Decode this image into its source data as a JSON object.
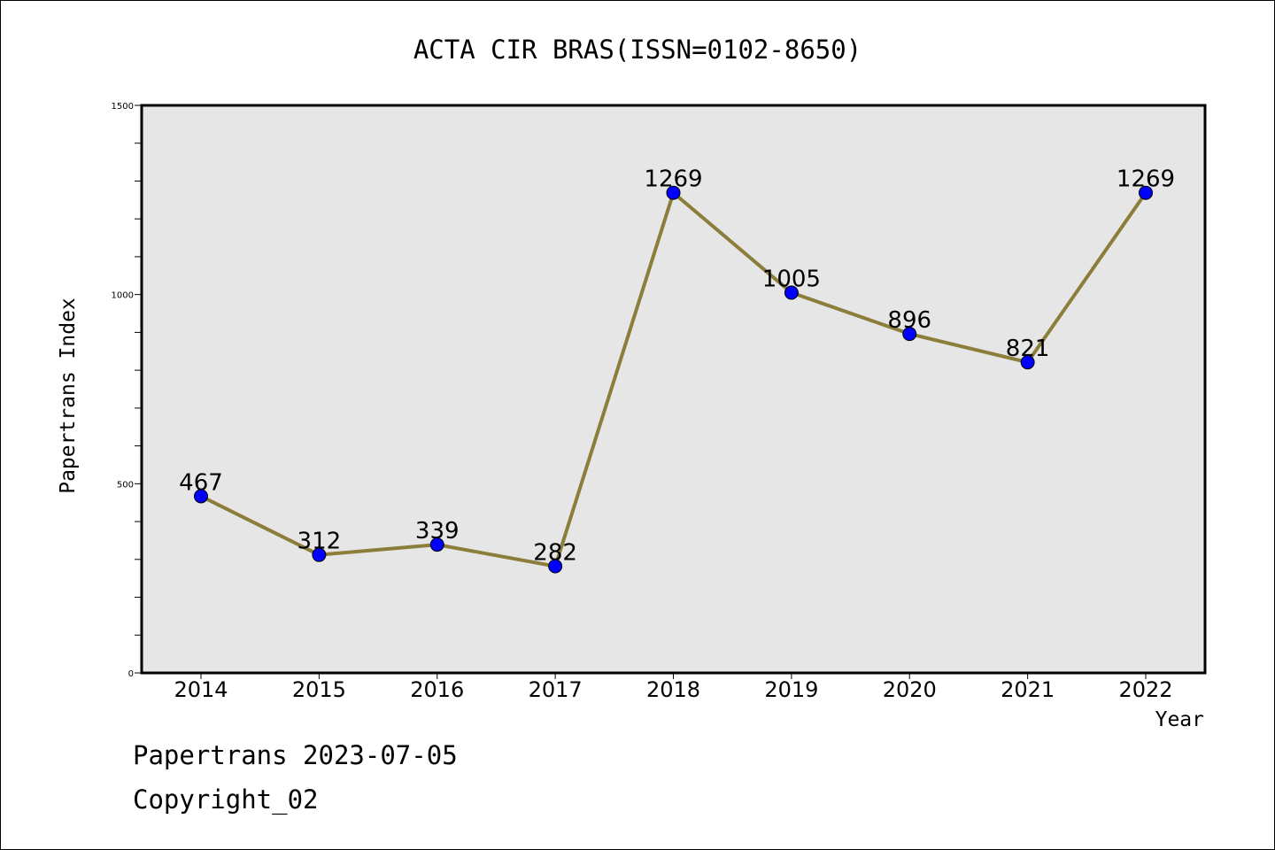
{
  "chart_data": {
    "type": "line",
    "title": "ACTA CIR BRAS(ISSN=0102-8650)",
    "xlabel": "Year",
    "ylabel": "Papertrans Index",
    "categories": [
      "2014",
      "2015",
      "2016",
      "2017",
      "2018",
      "2019",
      "2020",
      "2021",
      "2022"
    ],
    "values": [
      467,
      312,
      339,
      282,
      1269,
      1005,
      896,
      821,
      1269
    ],
    "data_labels": [
      "467",
      "312",
      "339",
      "282",
      "1269",
      "1005",
      "896",
      "821",
      "1269"
    ],
    "ylim": [
      0,
      1500
    ],
    "yticks": [
      0,
      500,
      1000,
      1500
    ],
    "yminor_step": 100,
    "grid": false,
    "line_color": "#8b7d3a",
    "marker_color": "#0000ff",
    "plot_bg": "#e6e6e6"
  },
  "footer": {
    "line1": "Papertrans 2023-07-05",
    "line2": "Copyright_02"
  }
}
